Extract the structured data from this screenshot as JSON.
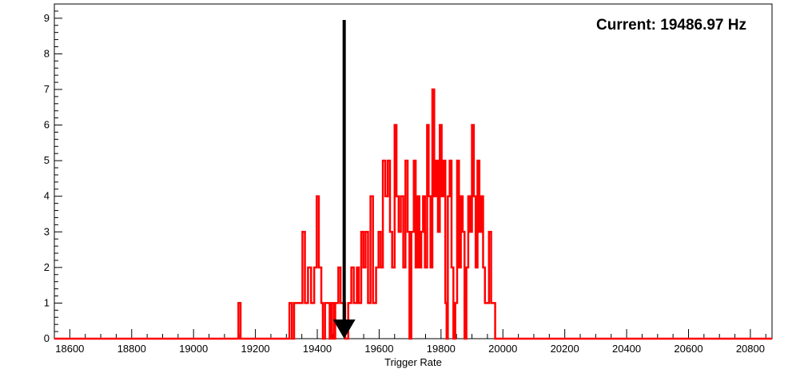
{
  "annotation": {
    "label": "Current: 19486.97 Hz",
    "marker_x": 19486.97
  },
  "chart_data": {
    "type": "line",
    "title": "",
    "xlabel": "Trigger Rate",
    "ylabel": "",
    "xlim": [
      18550,
      20870
    ],
    "ylim": [
      0,
      9.4
    ],
    "grid": false,
    "legend": "none",
    "x_ticks": [
      18600,
      18800,
      19000,
      19200,
      19400,
      19600,
      19800,
      20000,
      20200,
      20400,
      20600,
      20800
    ],
    "x_tick_labels": [
      "18600",
      "18800",
      "19000",
      "19200",
      "19400",
      "19600",
      "19800",
      "20000",
      "20200",
      "20400",
      "20600",
      "20800"
    ],
    "y_ticks": [
      0,
      1,
      2,
      3,
      4,
      5,
      6,
      7,
      8,
      9
    ],
    "y_tick_labels": [
      "0",
      "1",
      "2",
      "3",
      "4",
      "5",
      "6",
      "7",
      "8",
      "9"
    ],
    "series": [
      {
        "color": "#ff0000",
        "style": "step-histogram",
        "points": [
          [
            18550,
            0
          ],
          [
            19145,
            1
          ],
          [
            19152,
            0
          ],
          [
            19310,
            1
          ],
          [
            19318,
            0
          ],
          [
            19325,
            1
          ],
          [
            19345,
            1
          ],
          [
            19352,
            3
          ],
          [
            19360,
            1
          ],
          [
            19370,
            2
          ],
          [
            19380,
            1
          ],
          [
            19390,
            2
          ],
          [
            19398,
            4
          ],
          [
            19405,
            2
          ],
          [
            19413,
            1
          ],
          [
            19418,
            0
          ],
          [
            19425,
            1
          ],
          [
            19440,
            0
          ],
          [
            19446,
            1
          ],
          [
            19453,
            0
          ],
          [
            19458,
            1
          ],
          [
            19468,
            2
          ],
          [
            19475,
            1
          ],
          [
            19490,
            0
          ],
          [
            19500,
            1
          ],
          [
            19510,
            2
          ],
          [
            19518,
            1
          ],
          [
            19528,
            2
          ],
          [
            19534,
            1
          ],
          [
            19542,
            3
          ],
          [
            19549,
            2
          ],
          [
            19556,
            3
          ],
          [
            19564,
            1
          ],
          [
            19572,
            4
          ],
          [
            19580,
            1
          ],
          [
            19590,
            2
          ],
          [
            19598,
            3
          ],
          [
            19605,
            2
          ],
          [
            19612,
            5
          ],
          [
            19620,
            4
          ],
          [
            19628,
            5
          ],
          [
            19635,
            3
          ],
          [
            19642,
            2
          ],
          [
            19650,
            6
          ],
          [
            19656,
            4
          ],
          [
            19663,
            3
          ],
          [
            19670,
            4
          ],
          [
            19678,
            2
          ],
          [
            19685,
            5
          ],
          [
            19692,
            3
          ],
          [
            19698,
            0
          ],
          [
            19704,
            3
          ],
          [
            19712,
            5
          ],
          [
            19718,
            2
          ],
          [
            19724,
            4
          ],
          [
            19730,
            2
          ],
          [
            19736,
            3
          ],
          [
            19742,
            4
          ],
          [
            19748,
            2
          ],
          [
            19755,
            6
          ],
          [
            19760,
            4
          ],
          [
            19766,
            2
          ],
          [
            19772,
            7
          ],
          [
            19778,
            4
          ],
          [
            19784,
            5
          ],
          [
            19790,
            3
          ],
          [
            19796,
            6
          ],
          [
            19802,
            4
          ],
          [
            19808,
            5
          ],
          [
            19814,
            1
          ],
          [
            19818,
            0
          ],
          [
            19822,
            4
          ],
          [
            19828,
            5
          ],
          [
            19834,
            2
          ],
          [
            19840,
            0
          ],
          [
            19846,
            1
          ],
          [
            19852,
            5
          ],
          [
            19858,
            2
          ],
          [
            19864,
            4
          ],
          [
            19870,
            3
          ],
          [
            19876,
            0
          ],
          [
            19882,
            2
          ],
          [
            19888,
            4
          ],
          [
            19894,
            3
          ],
          [
            19900,
            6
          ],
          [
            19906,
            4
          ],
          [
            19912,
            2
          ],
          [
            19918,
            5
          ],
          [
            19924,
            3
          ],
          [
            19930,
            4
          ],
          [
            19936,
            2
          ],
          [
            19942,
            1
          ],
          [
            19955,
            3
          ],
          [
            19962,
            1
          ],
          [
            19975,
            0
          ]
        ]
      }
    ]
  }
}
